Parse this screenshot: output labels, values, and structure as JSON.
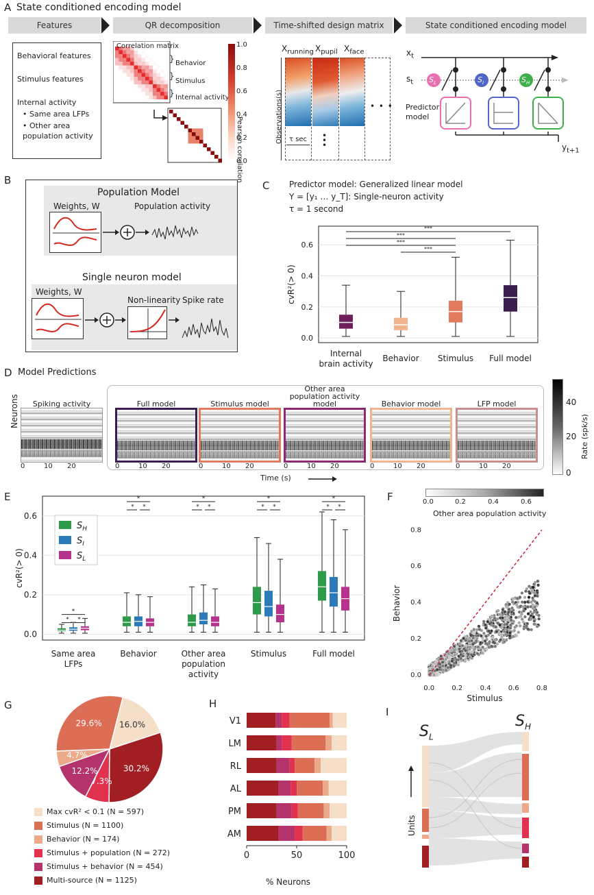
{
  "panelA": {
    "label": "A",
    "title": "State conditioned encoding model",
    "headers": [
      "Features",
      "QR decomposition",
      "Time-shifted design matrix",
      "State conditioned encoding model"
    ],
    "features": [
      "Behavioral features",
      "Stimulus features",
      "Internal activity",
      "Same area LFPs",
      "Other area population activity"
    ],
    "corr_title": "Correlation matrix",
    "corr_groups": [
      "Behavior",
      "Stimulus",
      "Internal activity"
    ],
    "cbar_label": "Pearson correlation",
    "cbar_ticks": [
      "1.0",
      "0.8",
      "0.6",
      "0.4",
      "0.2",
      "0.0"
    ],
    "design_cols": [
      "X",
      "X",
      "X"
    ],
    "design_subs": [
      "running",
      "pupil",
      "face"
    ],
    "design_ylabel": "Observations(s)",
    "tau_label": "τ sec",
    "dots": "• • •",
    "model_xt": "x",
    "model_xt_sub": "t",
    "model_st": "s",
    "model_st_sub": "t",
    "states": [
      "S",
      "S",
      "S"
    ],
    "state_subs": [
      "L",
      "I",
      "H"
    ],
    "predictor_label": "Predictor model",
    "yout": "y",
    "yout_sub": "t+1"
  },
  "panelB": {
    "label": "B",
    "pop_title": "Population Model",
    "weights": "Weights, W",
    "pop_out": "Population activity",
    "single_title": "Single neuron model",
    "nonlin": "Non-linearity",
    "spike": "Spike rate",
    "plus": "+"
  },
  "panelC": {
    "label": "C",
    "line1": "Predictor model: Generalized linear model",
    "line2": "Y = [y₁ … y_T]: Single-neuron activity",
    "line3": "τ = 1 second",
    "sig": "***"
  },
  "panelD": {
    "label": "D",
    "title": "Model Predictions",
    "maps": [
      "Spiking activity",
      "Full model",
      "Stimulus model",
      "Other area population activity model",
      "Behavior model",
      "LFP model"
    ],
    "ylabel": "Neurons",
    "xlabel": "Time (s)",
    "xticks": [
      "0",
      "10",
      "20"
    ],
    "cbar_label": "Rate (spk/s)",
    "cbar_ticks": [
      "40",
      "20",
      "0"
    ],
    "border_colors": [
      "#ffffff",
      "#3b1d4f",
      "#e07b5f",
      "#8e2a70",
      "#f0b48e",
      "#c98f8f"
    ]
  },
  "panelE": {
    "label": "E",
    "sig": "*"
  },
  "panelF": {
    "label": "F",
    "cbar_label": "Other area population activity",
    "cbar_ticks": [
      "0.0",
      "0.2",
      "0.4",
      "0.6"
    ]
  },
  "panelG": {
    "label": "G",
    "legend": [
      {
        "label": "Max cvR² < 0.1 (N = 597)",
        "color": "#f5dfc8"
      },
      {
        "label": "Stimulus (N = 1100)",
        "color": "#dc6e55"
      },
      {
        "label": "Behavior (N = 174)",
        "color": "#eca98c"
      },
      {
        "label": "Stimulus + population (N = 272)",
        "color": "#e0324e"
      },
      {
        "label": "Stimulus + behavior (N = 454)",
        "color": "#b4336a"
      },
      {
        "label": "Multi-source (N = 1125)",
        "color": "#a11e22"
      }
    ]
  },
  "panelH": {
    "label": "H",
    "xlabel": "% Neurons",
    "xticks": [
      "0",
      "50",
      "100"
    ]
  },
  "panelI": {
    "label": "I",
    "left": "S",
    "left_sub": "L",
    "right": "S",
    "right_sub": "H",
    "ylabel": "Units"
  },
  "chart_data": [
    {
      "id": "C",
      "type": "box",
      "title": "",
      "ylabel": "cvR²(> 0)",
      "categories": [
        "Internal brain activity",
        "Behavior",
        "Stimulus",
        "Full model"
      ],
      "colors": [
        "#6e1f5c",
        "#f0b48e",
        "#e07b5f",
        "#3b1d4f"
      ],
      "boxes": [
        {
          "min": 0.01,
          "q1": 0.06,
          "median": 0.1,
          "q3": 0.15,
          "max": 0.34
        },
        {
          "min": 0.01,
          "q1": 0.05,
          "median": 0.085,
          "q3": 0.13,
          "max": 0.3
        },
        {
          "min": 0.01,
          "q1": 0.1,
          "median": 0.17,
          "q3": 0.24,
          "max": 0.52
        },
        {
          "min": 0.01,
          "q1": 0.17,
          "median": 0.26,
          "q3": 0.34,
          "max": 0.63
        }
      ],
      "yticks": [
        0.0,
        0.2,
        0.4,
        0.6
      ],
      "ylim": [
        -0.03,
        0.72
      ]
    },
    {
      "id": "E",
      "type": "box",
      "ylabel": "cvR²(> 0)",
      "categories": [
        "Same area LFPs",
        "Behavior",
        "Other area population activity",
        "Stimulus",
        "Full model"
      ],
      "series": [
        {
          "name": "S_H",
          "color": "#2e9a4a",
          "boxes": [
            {
              "min": 0.005,
              "q1": 0.015,
              "median": 0.02,
              "q3": 0.03,
              "max": 0.05
            },
            {
              "min": 0.01,
              "q1": 0.04,
              "median": 0.06,
              "q3": 0.09,
              "max": 0.21
            },
            {
              "min": 0.01,
              "q1": 0.04,
              "median": 0.06,
              "q3": 0.1,
              "max": 0.24
            },
            {
              "min": 0.01,
              "q1": 0.1,
              "median": 0.16,
              "q3": 0.24,
              "max": 0.49
            },
            {
              "min": 0.01,
              "q1": 0.17,
              "median": 0.24,
              "q3": 0.32,
              "max": 0.62
            }
          ]
        },
        {
          "name": "S_I",
          "color": "#2b7bb9",
          "boxes": [
            {
              "min": 0.005,
              "q1": 0.017,
              "median": 0.025,
              "q3": 0.035,
              "max": 0.06
            },
            {
              "min": 0.01,
              "q1": 0.04,
              "median": 0.065,
              "q3": 0.09,
              "max": 0.2
            },
            {
              "min": 0.01,
              "q1": 0.05,
              "median": 0.07,
              "q3": 0.11,
              "max": 0.25
            },
            {
              "min": 0.01,
              "q1": 0.09,
              "median": 0.14,
              "q3": 0.22,
              "max": 0.46
            },
            {
              "min": 0.01,
              "q1": 0.14,
              "median": 0.21,
              "q3": 0.29,
              "max": 0.58
            }
          ]
        },
        {
          "name": "S_L",
          "color": "#b5338d",
          "boxes": [
            {
              "min": 0.005,
              "q1": 0.02,
              "median": 0.03,
              "q3": 0.04,
              "max": 0.08
            },
            {
              "min": 0.01,
              "q1": 0.04,
              "median": 0.06,
              "q3": 0.08,
              "max": 0.19
            },
            {
              "min": 0.01,
              "q1": 0.04,
              "median": 0.06,
              "q3": 0.09,
              "max": 0.23
            },
            {
              "min": 0.01,
              "q1": 0.06,
              "median": 0.1,
              "q3": 0.15,
              "max": 0.38
            },
            {
              "min": 0.01,
              "q1": 0.12,
              "median": 0.18,
              "q3": 0.24,
              "max": 0.53
            }
          ]
        }
      ],
      "legend_labels": [
        "S_H",
        "S_I",
        "S_L"
      ],
      "yticks": [
        0.0,
        0.2,
        0.4,
        0.6
      ],
      "ylim": [
        -0.03,
        0.7
      ]
    },
    {
      "id": "F",
      "type": "scatter",
      "xlabel": "Stimulus",
      "ylabel": "Behavior",
      "xlim": [
        -0.03,
        0.82
      ],
      "ylim": [
        -0.03,
        0.82
      ],
      "xticks": [
        0.0,
        0.2,
        0.4,
        0.6,
        0.8
      ],
      "yticks": [
        0.0,
        0.2,
        0.4,
        0.6,
        0.8
      ],
      "identity_line": true
    },
    {
      "id": "G",
      "type": "pie",
      "slices": [
        {
          "label": "16.0%",
          "value": 16.0,
          "color": "#f5dfc8"
        },
        {
          "label": "30.2%",
          "value": 30.2,
          "color": "#a11e22"
        },
        {
          "label": "7.3%",
          "value": 7.3,
          "color": "#e0324e"
        },
        {
          "label": "12.2%",
          "value": 12.2,
          "color": "#b4336a"
        },
        {
          "label": "4.7%",
          "value": 4.7,
          "color": "#eca98c"
        },
        {
          "label": "29.6%",
          "value": 29.6,
          "color": "#dc6e55"
        }
      ]
    },
    {
      "id": "H",
      "type": "stacked-bar",
      "categories": [
        "V1",
        "LM",
        "RL",
        "AL",
        "PM",
        "AM"
      ],
      "xlabel": "% Neurons",
      "xlim": [
        0,
        100
      ],
      "series_colors": [
        "#a11e22",
        "#b4336a",
        "#e0324e",
        "#dc6e55",
        "#eca98c",
        "#f5dfc8"
      ],
      "values": [
        [
          29,
          6,
          8,
          40,
          3,
          14
        ],
        [
          30,
          5,
          10,
          34,
          6,
          15
        ],
        [
          30,
          13,
          5,
          20,
          6,
          26
        ],
        [
          32,
          12,
          6,
          26,
          6,
          18
        ],
        [
          30,
          15,
          6,
          26,
          6,
          17
        ],
        [
          32,
          16,
          8,
          24,
          5,
          15
        ]
      ]
    }
  ]
}
